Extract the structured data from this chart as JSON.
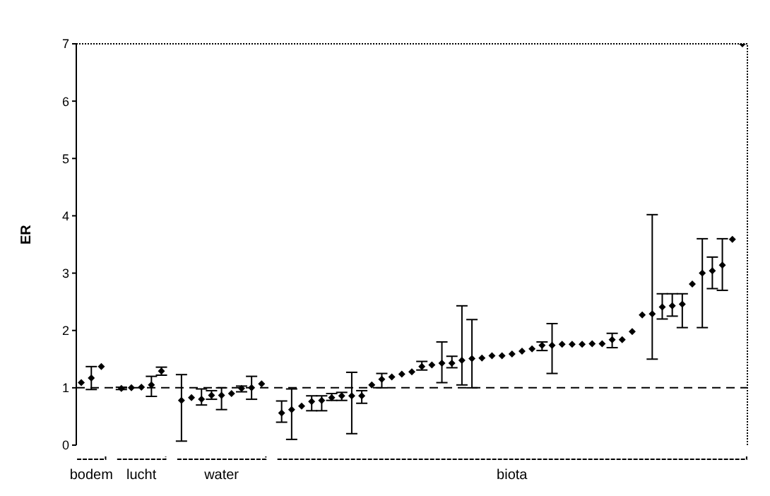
{
  "chart_data": {
    "type": "scatter",
    "ylabel": "ER",
    "ylim": [
      0,
      7
    ],
    "yticks": [
      0,
      1,
      2,
      3,
      4,
      5,
      6,
      7
    ],
    "tick_labels": "y",
    "marker": "diamond",
    "categories": [
      null,
      null,
      null,
      null,
      null,
      null,
      null,
      null,
      null,
      null,
      null,
      null,
      null,
      null,
      null,
      null,
      null,
      null,
      null,
      null,
      null,
      null,
      null,
      null,
      null,
      null,
      null,
      null,
      null,
      null,
      null,
      null,
      null,
      null,
      null,
      null,
      null,
      null,
      null,
      null,
      null,
      null,
      null,
      null,
      null,
      null,
      null,
      null,
      null,
      null,
      null,
      null,
      null,
      null,
      null,
      null,
      null,
      null,
      null,
      null,
      null,
      null,
      null,
      null,
      null,
      null,
      null
    ],
    "series": [
      {
        "color": "#000000",
        "values": [
          1.09,
          1.17,
          1.37,
          null,
          0.99,
          1.0,
          1.01,
          1.05,
          1.29,
          null,
          0.78,
          0.83,
          0.8,
          0.87,
          0.87,
          0.9,
          0.99,
          1.0,
          1.07,
          null,
          0.56,
          0.62,
          0.68,
          0.76,
          0.78,
          0.83,
          0.86,
          0.86,
          0.86,
          1.05,
          1.15,
          1.19,
          1.24,
          1.28,
          1.37,
          1.4,
          1.43,
          1.43,
          1.48,
          1.51,
          1.52,
          1.56,
          1.56,
          1.59,
          1.64,
          1.68,
          1.74,
          1.74,
          1.76,
          1.76,
          1.76,
          1.77,
          1.77,
          1.84,
          1.84,
          1.98,
          2.27,
          2.29,
          2.41,
          2.43,
          2.46,
          2.81,
          3.0,
          3.04,
          3.14,
          3.59,
          7.0
        ],
        "errors": [
          null,
          [
            0.97,
            1.37
          ],
          null,
          null,
          [
            0.97,
            1.01
          ],
          null,
          null,
          [
            0.85,
            1.2
          ],
          [
            1.22,
            1.36
          ],
          null,
          [
            0.07,
            1.23
          ],
          null,
          [
            0.7,
            0.98
          ],
          [
            0.8,
            0.95
          ],
          [
            0.62,
            1.0
          ],
          null,
          [
            0.93,
            1.03
          ],
          [
            0.8,
            1.2
          ],
          null,
          null,
          [
            0.4,
            0.77
          ],
          [
            0.1,
            0.98
          ],
          null,
          [
            0.6,
            0.86
          ],
          [
            0.6,
            0.86
          ],
          [
            0.78,
            0.9
          ],
          [
            0.78,
            0.92
          ],
          [
            0.2,
            1.27
          ],
          [
            0.73,
            0.95
          ],
          null,
          [
            1.0,
            1.25
          ],
          null,
          null,
          null,
          [
            1.31,
            1.46
          ],
          null,
          [
            1.09,
            1.8
          ],
          [
            1.35,
            1.55
          ],
          [
            1.05,
            2.43
          ],
          [
            1.0,
            2.19
          ],
          null,
          null,
          null,
          null,
          null,
          null,
          [
            1.65,
            1.8
          ],
          [
            1.25,
            2.12
          ],
          null,
          null,
          null,
          null,
          null,
          [
            1.7,
            1.95
          ],
          null,
          null,
          null,
          [
            1.5,
            4.02
          ],
          [
            2.2,
            2.64
          ],
          [
            2.25,
            2.64
          ],
          [
            2.05,
            2.64
          ],
          null,
          [
            2.05,
            3.6
          ],
          [
            2.73,
            3.28
          ],
          [
            2.7,
            3.6
          ],
          null,
          null
        ]
      }
    ],
    "ref_lines": [
      {
        "axis": "y",
        "value": 1,
        "line_style": "dashed",
        "color": "#000000"
      }
    ],
    "annotations": [
      "bodem",
      "lucht",
      "water",
      "biota"
    ]
  }
}
